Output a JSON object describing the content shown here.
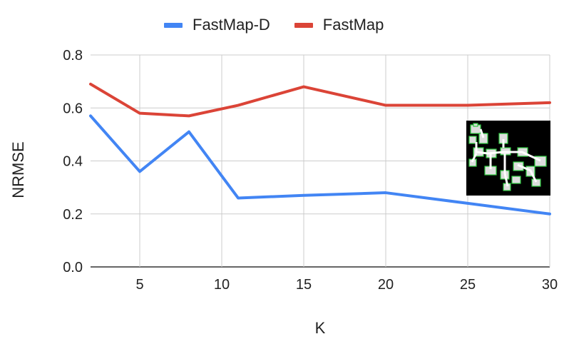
{
  "chart_data": {
    "type": "line",
    "x": [
      2,
      5,
      8,
      11,
      15,
      20,
      25,
      30
    ],
    "series": [
      {
        "name": "FastMap-D",
        "color": "#4285f4",
        "values": [
          0.57,
          0.36,
          0.51,
          0.26,
          0.27,
          0.28,
          0.24,
          0.2
        ]
      },
      {
        "name": "FastMap",
        "color": "#db4437",
        "values": [
          0.69,
          0.58,
          0.57,
          0.61,
          0.68,
          0.61,
          0.61,
          0.62
        ]
      }
    ],
    "title": "",
    "xlabel": "K",
    "ylabel": "NRMSE",
    "xlim": [
      2,
      30
    ],
    "ylim": [
      0,
      0.8
    ],
    "xticks": [
      5,
      10,
      15,
      20,
      25,
      30
    ],
    "yticks": [
      0.0,
      0.2,
      0.4,
      0.6,
      0.8
    ],
    "xtick_labels": [
      "5",
      "10",
      "15",
      "20",
      "25",
      "30"
    ],
    "ytick_labels": [
      "0.0",
      "0.2",
      "0.4",
      "0.6",
      "0.8"
    ],
    "grid": true,
    "legend_position": "top"
  },
  "inset": {
    "icon": "grid-map-thumbnail-icon",
    "background": "#000000",
    "accent": "#2ecc40"
  }
}
